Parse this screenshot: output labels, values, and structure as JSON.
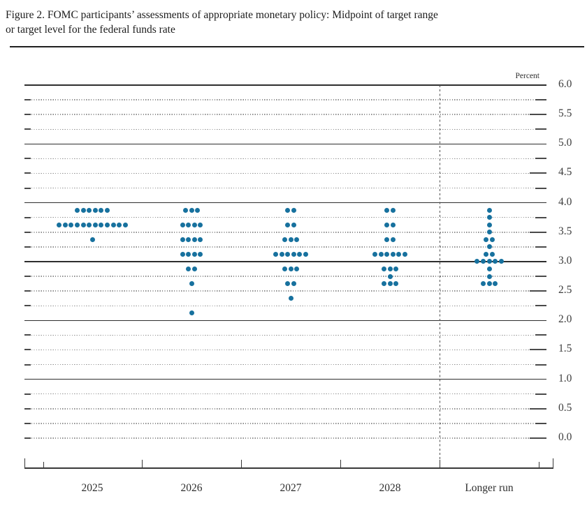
{
  "title": {
    "line1": "Figure 2. FOMC participants’ assessments of appropriate monetary policy: Midpoint of target range",
    "line2": "or target level for the federal funds rate"
  },
  "chart_data": {
    "type": "scatter",
    "subtype": "fomc-dot-plot",
    "title": "Figure 2. FOMC participants’ assessments of appropriate monetary policy: Midpoint of target range or target level for the federal funds rate",
    "unit_label": "Percent",
    "ylabel": "Percent",
    "xlabel": "",
    "ylim": [
      0.0,
      6.0
    ],
    "y_major_step": 1.0,
    "y_minor_step": 0.25,
    "y_label_step": 0.5,
    "y_tick_labels": [
      "6.0",
      "5.5",
      "5.0",
      "4.5",
      "4.0",
      "3.5",
      "3.0",
      "2.5",
      "2.0",
      "1.5",
      "1.0",
      "0.5",
      "0.0"
    ],
    "grid": "solid lines at whole percents, dotted lines at quarter percents",
    "legend": "none",
    "categories": [
      "2025",
      "2026",
      "2027",
      "2028",
      "Longer run"
    ],
    "participants_per_column": 19,
    "dot_color": "#17719e",
    "series": [
      {
        "name": "2025",
        "dots": [
          {
            "rate": 3.875,
            "count": 6
          },
          {
            "rate": 3.625,
            "count": 12
          },
          {
            "rate": 3.375,
            "count": 1
          }
        ]
      },
      {
        "name": "2026",
        "dots": [
          {
            "rate": 3.875,
            "count": 3
          },
          {
            "rate": 3.625,
            "count": 4
          },
          {
            "rate": 3.375,
            "count": 4
          },
          {
            "rate": 3.125,
            "count": 4
          },
          {
            "rate": 2.875,
            "count": 2
          },
          {
            "rate": 2.625,
            "count": 1
          },
          {
            "rate": 2.125,
            "count": 1
          }
        ]
      },
      {
        "name": "2027",
        "dots": [
          {
            "rate": 3.875,
            "count": 2
          },
          {
            "rate": 3.625,
            "count": 2
          },
          {
            "rate": 3.375,
            "count": 3
          },
          {
            "rate": 3.125,
            "count": 6
          },
          {
            "rate": 2.875,
            "count": 3
          },
          {
            "rate": 2.625,
            "count": 2
          },
          {
            "rate": 2.375,
            "count": 1
          }
        ]
      },
      {
        "name": "2028",
        "dots": [
          {
            "rate": 3.875,
            "count": 2
          },
          {
            "rate": 3.625,
            "count": 2
          },
          {
            "rate": 3.375,
            "count": 2
          },
          {
            "rate": 3.125,
            "count": 6
          },
          {
            "rate": 2.875,
            "count": 3
          },
          {
            "rate": 2.75,
            "count": 1
          },
          {
            "rate": 2.625,
            "count": 3
          }
        ]
      },
      {
        "name": "Longer run",
        "dots": [
          {
            "rate": 3.875,
            "count": 1
          },
          {
            "rate": 3.75,
            "count": 1
          },
          {
            "rate": 3.625,
            "count": 1
          },
          {
            "rate": 3.5,
            "count": 1
          },
          {
            "rate": 3.375,
            "count": 2
          },
          {
            "rate": 3.25,
            "count": 1
          },
          {
            "rate": 3.125,
            "count": 2
          },
          {
            "rate": 3.0,
            "count": 5
          },
          {
            "rate": 2.875,
            "count": 1
          },
          {
            "rate": 2.75,
            "count": 1
          },
          {
            "rate": 2.625,
            "count": 3
          }
        ]
      }
    ]
  },
  "colors": {
    "dot": "#17719e",
    "solid_gridline": "#2e2e2e",
    "dotted_gridline": "#8f8f8f",
    "axis": "#383838",
    "background": "#ffffff"
  }
}
